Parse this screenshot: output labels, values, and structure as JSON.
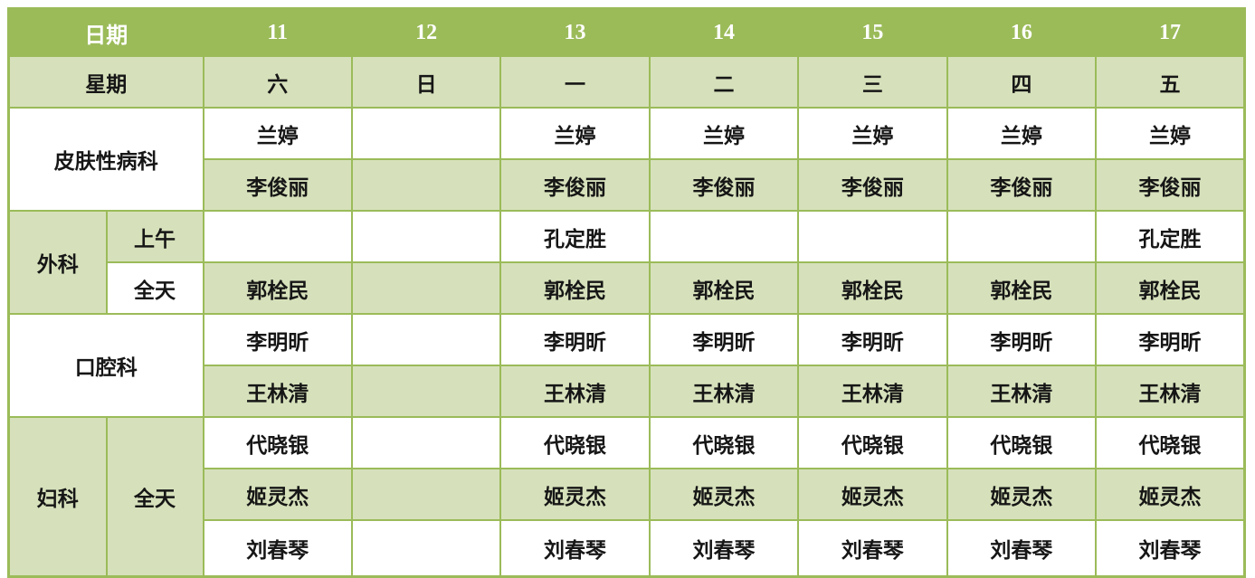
{
  "colors": {
    "header_bg": "#9bbb59",
    "light_green": "#d6e1bb",
    "border_green": "#9bbb59",
    "text_dark": "#161616",
    "text_light": "#ffffff"
  },
  "table": {
    "date_row": {
      "label": "日期",
      "values": [
        "11",
        "12",
        "13",
        "14",
        "15",
        "16",
        "17"
      ]
    },
    "week_row": {
      "label": "星期",
      "values": [
        "六",
        "日",
        "一",
        "二",
        "三",
        "四",
        "五"
      ]
    },
    "departments": {
      "dermatology": {
        "label": "皮肤性病科"
      },
      "surgery": {
        "label": "外科",
        "morning": "上午",
        "all_day": "全天"
      },
      "dental": {
        "label": "口腔科"
      },
      "gynecology": {
        "label": "妇科",
        "all_day": "全天"
      }
    },
    "rows": {
      "dermatology_1": [
        "兰婷",
        "",
        "兰婷",
        "兰婷",
        "兰婷",
        "兰婷",
        "兰婷"
      ],
      "dermatology_2": [
        "李俊丽",
        "",
        "李俊丽",
        "李俊丽",
        "李俊丽",
        "李俊丽",
        "李俊丽"
      ],
      "surgery_morning": [
        "",
        "",
        "孔定胜",
        "",
        "",
        "",
        "孔定胜"
      ],
      "surgery_all_day": [
        "郭栓民",
        "",
        "郭栓民",
        "郭栓民",
        "郭栓民",
        "郭栓民",
        "郭栓民"
      ],
      "dental_1": [
        "李明昕",
        "",
        "李明昕",
        "李明昕",
        "李明昕",
        "李明昕",
        "李明昕"
      ],
      "dental_2": [
        "王林清",
        "",
        "王林清",
        "王林清",
        "王林清",
        "王林清",
        "王林清"
      ],
      "gynecology_1": [
        "代晓银",
        "",
        "代晓银",
        "代晓银",
        "代晓银",
        "代晓银",
        "代晓银"
      ],
      "gynecology_2": [
        "姬灵杰",
        "",
        "姬灵杰",
        "姬灵杰",
        "姬灵杰",
        "姬灵杰",
        "姬灵杰"
      ],
      "gynecology_3": [
        "刘春琴",
        "",
        "刘春琴",
        "刘春琴",
        "刘春琴",
        "刘春琴",
        "刘春琴"
      ]
    }
  }
}
